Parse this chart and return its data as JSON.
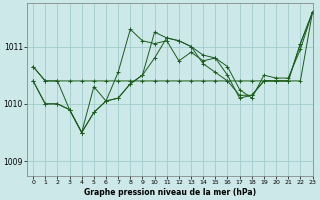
{
  "title": "Graphe pression niveau de la mer (hPa)",
  "background_color": "#cde8e8",
  "grid_color": "#a0cccc",
  "line_color": "#1a5c1a",
  "xlim": [
    -0.5,
    23
  ],
  "ylim": [
    1008.75,
    1011.75
  ],
  "yticks": [
    1009,
    1010,
    1011
  ],
  "xticks": [
    0,
    1,
    2,
    3,
    4,
    5,
    6,
    7,
    8,
    9,
    10,
    11,
    12,
    13,
    14,
    15,
    16,
    17,
    18,
    19,
    20,
    21,
    22,
    23
  ],
  "series": [
    [
      1010.65,
      1010.4,
      1010.4,
      1010.4,
      1010.4,
      1010.4,
      1010.4,
      1010.4,
      1010.4,
      1010.4,
      1010.4,
      1010.4,
      1010.4,
      1010.4,
      1010.4,
      1010.4,
      1010.4,
      1010.4,
      1010.4,
      1010.4,
      1010.4,
      1010.4,
      1010.4,
      1011.6
    ],
    [
      1010.4,
      1010.0,
      1010.0,
      1009.9,
      1009.5,
      1009.85,
      1010.05,
      1010.1,
      1010.35,
      1010.5,
      1010.8,
      1011.15,
      1011.1,
      1011.0,
      1010.7,
      1010.55,
      1010.4,
      1010.15,
      1010.15,
      1010.4,
      1010.4,
      1010.4,
      1011.05,
      1011.6
    ],
    [
      1010.4,
      1010.0,
      1010.0,
      1009.9,
      1009.5,
      1009.85,
      1010.05,
      1010.1,
      1010.35,
      1010.5,
      1011.25,
      1011.15,
      1011.1,
      1011.0,
      1010.85,
      1010.8,
      1010.5,
      1010.1,
      1010.15,
      1010.4,
      1010.4,
      1010.4,
      1011.05,
      1011.6
    ],
    [
      1010.65,
      1010.4,
      1010.4,
      1009.9,
      1009.5,
      1010.3,
      1010.05,
      1010.55,
      1011.3,
      1011.1,
      1011.05,
      1011.1,
      1010.75,
      1010.9,
      1010.75,
      1010.8,
      1010.65,
      1010.25,
      1010.1,
      1010.5,
      1010.45,
      1010.45,
      1010.95,
      1011.6
    ]
  ]
}
